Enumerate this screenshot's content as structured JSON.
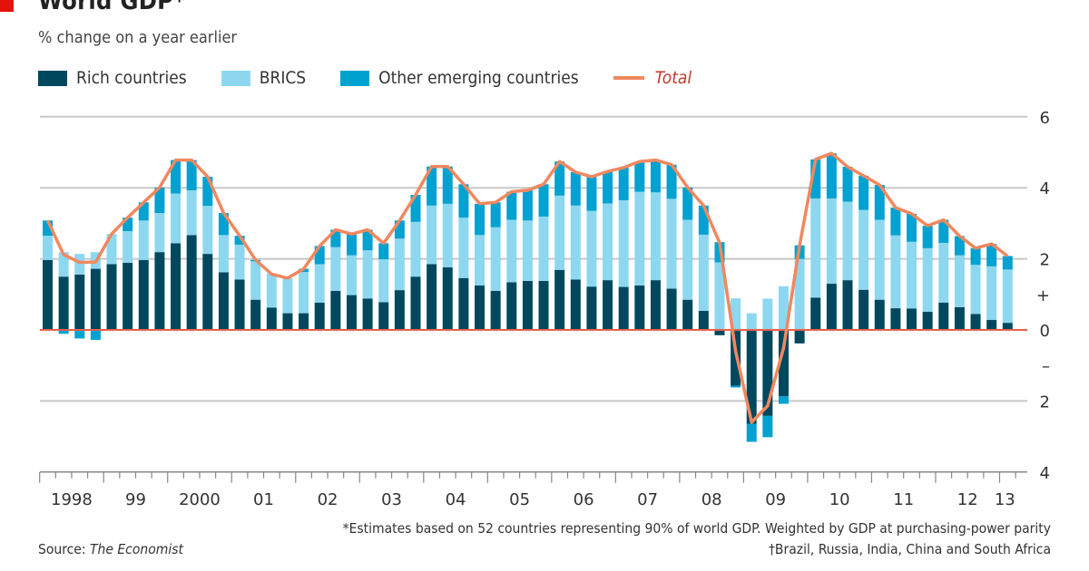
{
  "header": {
    "title": "World GDP*",
    "subtitle": "% change on a year earlier"
  },
  "legend": [
    {
      "label": "Rich countries",
      "color": "#00485d"
    },
    {
      "label": "BRICS",
      "color": "#8dd8f0"
    },
    {
      "label": "Other emerging countries",
      "color": "#00a2cf"
    },
    {
      "label": "Total",
      "color": "#f08860"
    }
  ],
  "footer": {
    "note": "*Estimates based on 52 countries representing 90% of world GDP. Weighted by GDP at purchasing-power parity",
    "brics_note": "†Brazil, Russia, India, China and South Africa",
    "source_prefix": "Source: ",
    "source_name": "The Economist"
  },
  "chart_data": {
    "type": "bar",
    "stacked": true,
    "title": "World GDP*",
    "subtitle": "% change on a year earlier",
    "frequency": "quarterly",
    "x_start": "1998 Q1",
    "x_end": "2013 Q1",
    "x_tick_labels": [
      "1998",
      "99",
      "2000",
      "01",
      "02",
      "03",
      "04",
      "05",
      "06",
      "07",
      "08",
      "09",
      "10",
      "11",
      "12",
      "13"
    ],
    "ylim": [
      -4,
      6
    ],
    "y_ticks": [
      {
        "value": 6,
        "label": "6"
      },
      {
        "value": 4,
        "label": "4"
      },
      {
        "value": 2,
        "label": "2"
      },
      {
        "value": 1,
        "label": "+"
      },
      {
        "value": 0,
        "label": "0"
      },
      {
        "value": -1,
        "label": "–"
      },
      {
        "value": -2,
        "label": "2"
      },
      {
        "value": -4,
        "label": "4"
      }
    ],
    "y_axis_side": "right",
    "grid": true,
    "legend_position": "top-left",
    "series": [
      {
        "name": "Rich countries",
        "color": "#00485d",
        "values": [
          1.97,
          1.5,
          1.56,
          1.72,
          1.85,
          1.89,
          1.97,
          2.19,
          2.44,
          2.67,
          2.14,
          1.62,
          1.42,
          0.85,
          0.63,
          0.47,
          0.47,
          0.77,
          1.1,
          0.98,
          0.88,
          0.78,
          1.12,
          1.5,
          1.85,
          1.76,
          1.46,
          1.25,
          1.1,
          1.34,
          1.38,
          1.38,
          1.69,
          1.42,
          1.22,
          1.4,
          1.21,
          1.25,
          1.4,
          1.16,
          0.85,
          0.54,
          -0.15,
          -1.57,
          -2.64,
          -2.42,
          -1.87,
          -0.38,
          0.91,
          1.3,
          1.4,
          1.13,
          0.85,
          0.61,
          0.6,
          0.51,
          0.77,
          0.64,
          0.45,
          0.28,
          0.2
        ]
      },
      {
        "name": "BRICS",
        "color": "#8dd8f0",
        "values": [
          0.68,
          0.69,
          0.58,
          0.47,
          0.85,
          0.89,
          1.11,
          1.1,
          1.4,
          1.26,
          1.35,
          1.05,
          0.98,
          1.08,
          0.96,
          0.99,
          1.16,
          1.08,
          1.23,
          1.12,
          1.36,
          1.21,
          1.45,
          1.54,
          1.65,
          1.79,
          1.7,
          1.42,
          1.79,
          1.76,
          1.7,
          1.81,
          2.09,
          2.08,
          2.13,
          2.16,
          2.44,
          2.64,
          2.47,
          2.53,
          2.25,
          2.14,
          1.9,
          0.89,
          0.47,
          0.88,
          1.23,
          2.0,
          2.79,
          2.4,
          2.21,
          2.25,
          2.25,
          2.05,
          1.88,
          1.79,
          1.68,
          1.46,
          1.38,
          1.51,
          1.5
        ]
      },
      {
        "name": "Other emerging countries",
        "color": "#00a2cf",
        "values": [
          0.43,
          -0.11,
          -0.24,
          -0.28,
          0.0,
          0.38,
          0.51,
          0.72,
          0.94,
          0.85,
          0.82,
          0.62,
          0.25,
          0.04,
          0.0,
          0.0,
          0.09,
          0.51,
          0.49,
          0.6,
          0.58,
          0.45,
          0.51,
          0.76,
          1.1,
          1.05,
          0.94,
          0.88,
          0.7,
          0.79,
          0.85,
          0.91,
          0.96,
          0.94,
          0.96,
          0.9,
          0.92,
          0.85,
          0.91,
          0.96,
          0.91,
          0.82,
          0.57,
          -0.05,
          -0.51,
          -0.6,
          -0.21,
          0.38,
          1.1,
          1.27,
          0.98,
          0.96,
          0.98,
          0.78,
          0.79,
          0.63,
          0.65,
          0.54,
          0.47,
          0.63,
          0.38
        ]
      }
    ],
    "total": {
      "name": "Total",
      "type": "line",
      "color": "#f08860",
      "values": [
        3.08,
        2.12,
        1.9,
        1.91,
        2.7,
        3.16,
        3.59,
        4.01,
        4.78,
        4.78,
        4.31,
        3.29,
        2.65,
        1.97,
        1.57,
        1.46,
        1.72,
        2.36,
        2.82,
        2.7,
        2.82,
        2.44,
        3.08,
        3.8,
        4.6,
        4.6,
        4.1,
        3.55,
        3.59,
        3.89,
        3.93,
        4.1,
        4.74,
        4.44,
        4.31,
        4.46,
        4.57,
        4.74,
        4.78,
        4.65,
        4.01,
        3.5,
        2.45,
        -0.6,
        -2.6,
        -2.14,
        -0.5,
        2.38,
        4.8,
        4.97,
        4.59,
        4.34,
        4.08,
        3.44,
        3.27,
        2.93,
        3.1,
        2.64,
        2.3,
        2.42,
        2.08
      ]
    }
  }
}
